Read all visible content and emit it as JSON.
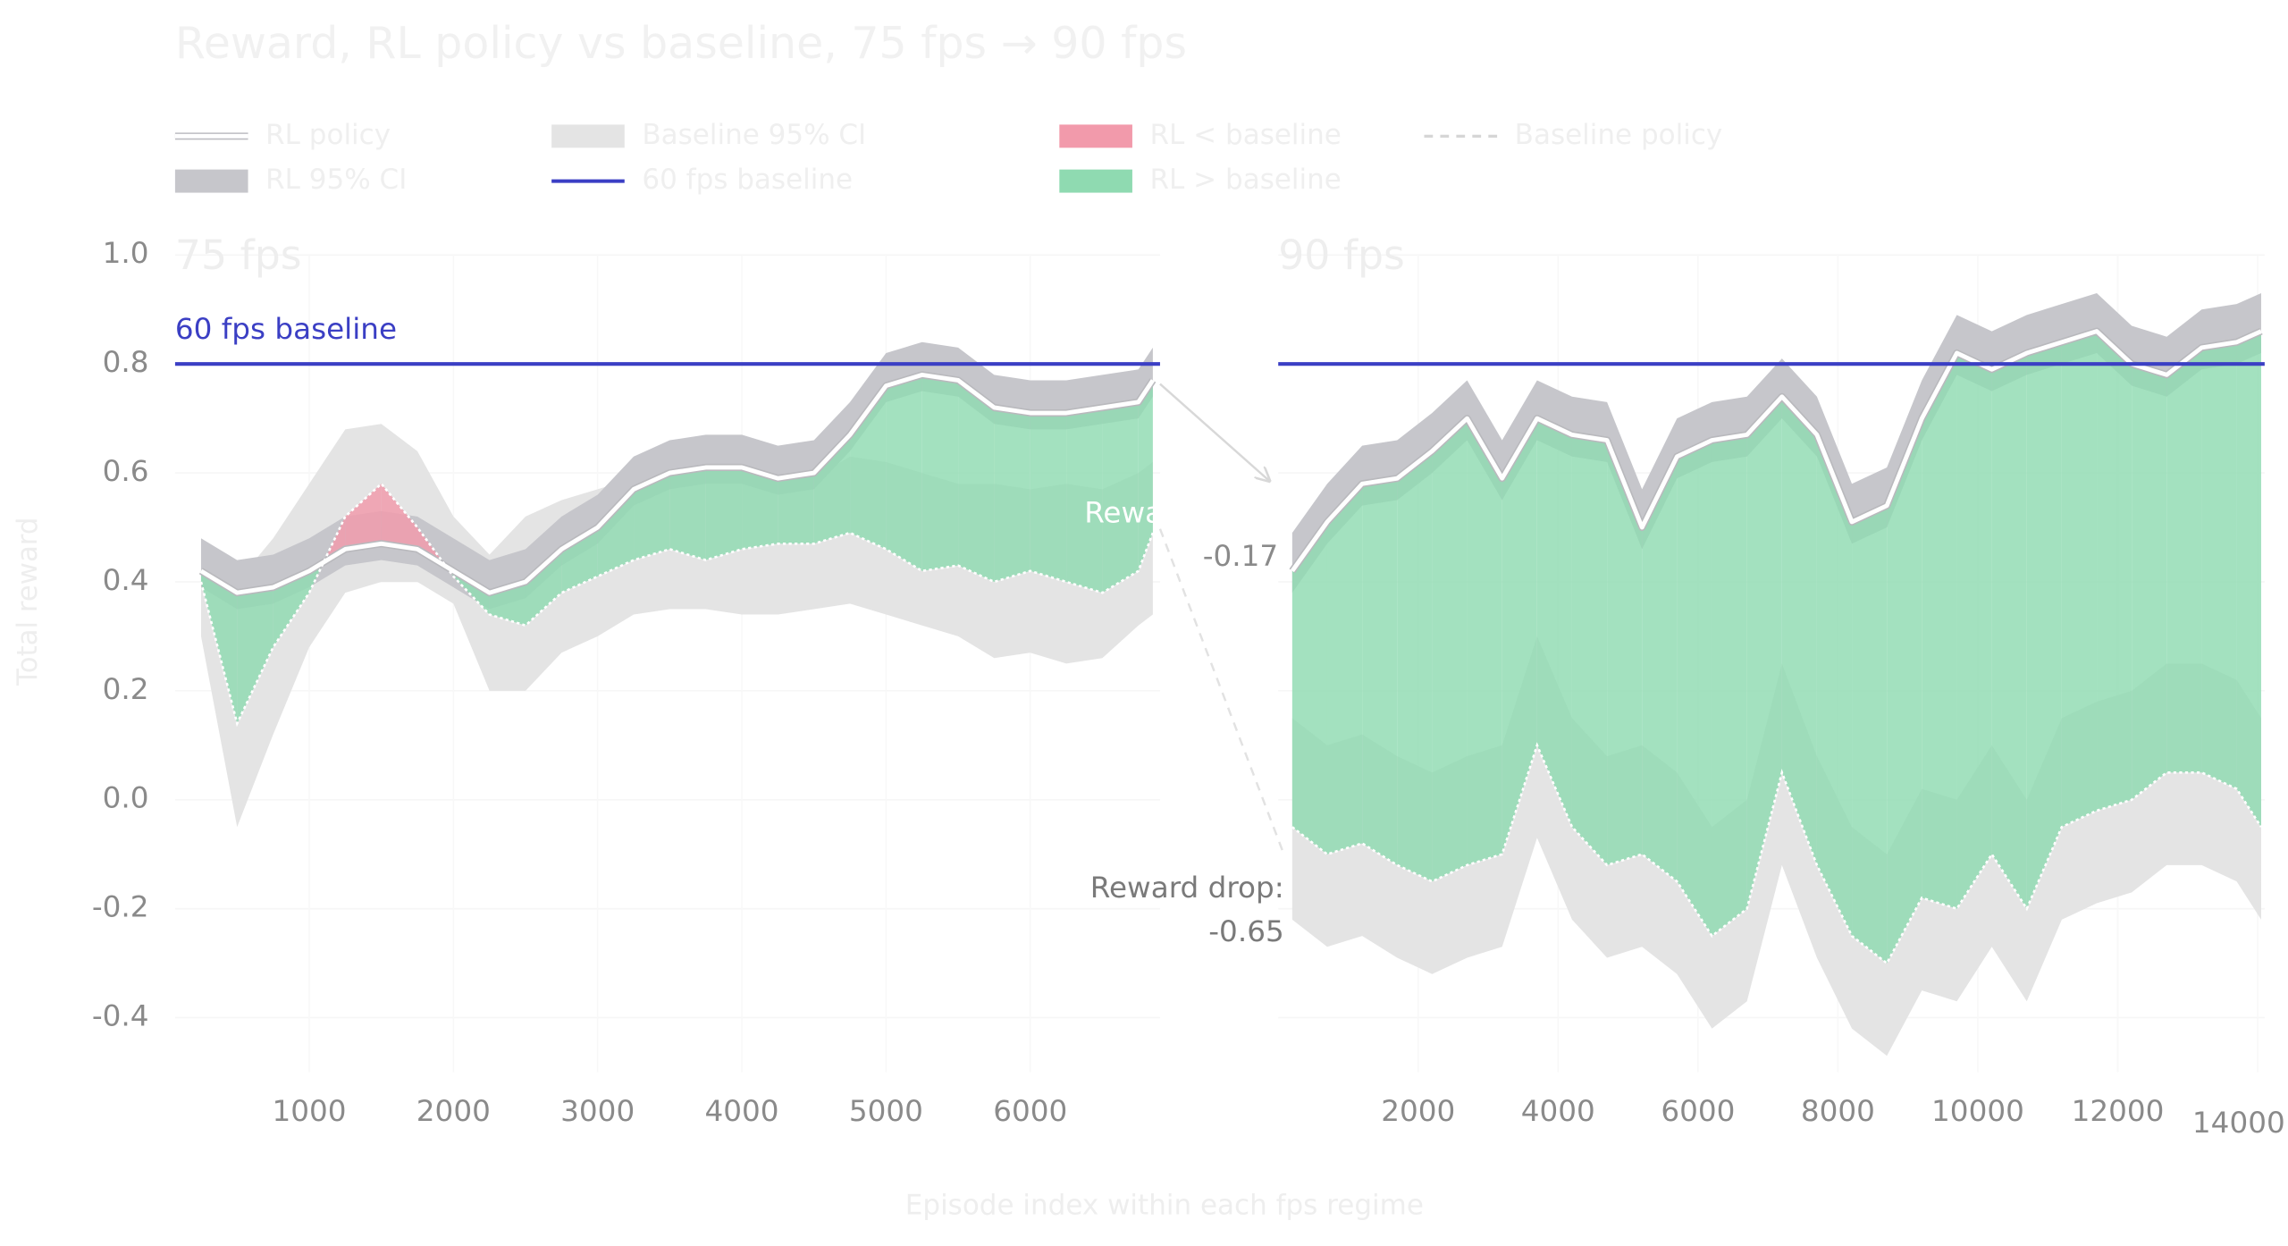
{
  "chart_data": {
    "type": "area",
    "title": "Reward, RL policy vs baseline, 75 fps → 90 fps",
    "x_label": "Episode index within each fps regime",
    "y_label": "Total reward",
    "ylim": [
      -0.5,
      1.0
    ],
    "yticks": [
      {
        "value": 1,
        "label": "1.0"
      },
      0.8,
      0.6,
      0.4,
      0.2,
      {
        "value": 0,
        "label": "0.0"
      },
      -0.2,
      -0.4
    ],
    "panels": [
      {
        "title": "75 fps",
        "x": [
          250,
          500,
          750,
          1000,
          1250,
          1500,
          1750,
          2000,
          2250,
          2500,
          2750,
          3000,
          3250,
          3500,
          3750,
          4000,
          4250,
          4500,
          4750,
          5000,
          5250,
          5500,
          5750,
          6000,
          6250,
          6500,
          6750,
          6850
        ],
        "xlim": [
          70,
          6900
        ],
        "xticks": [
          1000,
          2000,
          3000,
          4000,
          5000,
          6000
        ]
      },
      {
        "title": "90 fps",
        "x": [
          200,
          700,
          1200,
          1700,
          2200,
          2700,
          3200,
          3700,
          4200,
          4700,
          5200,
          5700,
          6200,
          6700,
          7200,
          7700,
          8200,
          8700,
          9200,
          9700,
          10200,
          10700,
          11200,
          11700,
          12200,
          12700,
          13200,
          13700,
          14050
        ],
        "xlim": [
          0,
          14100
        ],
        "xticks": [
          2000,
          4000,
          6000,
          8000,
          10000,
          12000,
          14000
        ]
      }
    ],
    "series": [
      {
        "name": "Baseline 95% CI",
        "kind": "band",
        "color": "#e4e4e4",
        "upper": [
          [
            0.45,
            0.4,
            0.48,
            0.58,
            0.68,
            0.69,
            0.64,
            0.52,
            0.45,
            0.52,
            0.55,
            0.57,
            0.59,
            0.6,
            0.61,
            0.6,
            0.58,
            0.59,
            0.63,
            0.62,
            0.6,
            0.58,
            0.58,
            0.57,
            0.58,
            0.57,
            0.6,
            0.62
          ],
          [
            0.15,
            0.1,
            0.12,
            0.08,
            0.05,
            0.08,
            0.1,
            0.3,
            0.15,
            0.08,
            0.1,
            0.05,
            -0.05,
            0,
            0.25,
            0.08,
            -0.05,
            -0.1,
            0.02,
            0,
            0.1,
            0,
            0.15,
            0.18,
            0.2,
            0.25,
            0.25,
            0.22,
            0.15
          ]
        ],
        "lower": [
          [
            0.3,
            -0.05,
            0.12,
            0.28,
            0.38,
            0.4,
            0.4,
            0.36,
            0.2,
            0.2,
            0.27,
            0.3,
            0.34,
            0.35,
            0.35,
            0.34,
            0.34,
            0.35,
            0.36,
            0.34,
            0.32,
            0.3,
            0.26,
            0.27,
            0.25,
            0.26,
            0.32,
            0.34
          ],
          [
            -0.22,
            -0.27,
            -0.25,
            -0.29,
            -0.32,
            -0.29,
            -0.27,
            -0.07,
            -0.22,
            -0.29,
            -0.27,
            -0.32,
            -0.42,
            -0.37,
            -0.12,
            -0.29,
            -0.42,
            -0.47,
            -0.35,
            -0.37,
            -0.27,
            -0.37,
            -0.22,
            -0.19,
            -0.17,
            -0.12,
            -0.12,
            -0.15,
            -0.22
          ]
        ]
      },
      {
        "name": "RL 95% CI",
        "kind": "band",
        "color": "#c6c6cb",
        "upper": [
          [
            0.48,
            0.44,
            0.45,
            0.48,
            0.52,
            0.53,
            0.52,
            0.48,
            0.44,
            0.46,
            0.52,
            0.56,
            0.63,
            0.66,
            0.67,
            0.67,
            0.65,
            0.66,
            0.73,
            0.82,
            0.84,
            0.83,
            0.78,
            0.77,
            0.77,
            0.78,
            0.79,
            0.83
          ],
          [
            0.49,
            0.58,
            0.65,
            0.66,
            0.71,
            0.77,
            0.66,
            0.77,
            0.74,
            0.73,
            0.57,
            0.7,
            0.73,
            0.74,
            0.81,
            0.74,
            0.58,
            0.61,
            0.77,
            0.89,
            0.86,
            0.89,
            0.91,
            0.93,
            0.87,
            0.85,
            0.9,
            0.91,
            0.93
          ]
        ],
        "lower": [
          [
            0.39,
            0.35,
            0.36,
            0.39,
            0.43,
            0.44,
            0.43,
            0.39,
            0.35,
            0.37,
            0.43,
            0.47,
            0.54,
            0.57,
            0.58,
            0.58,
            0.56,
            0.57,
            0.64,
            0.73,
            0.75,
            0.74,
            0.69,
            0.68,
            0.68,
            0.69,
            0.7,
            0.74
          ],
          [
            0.38,
            0.47,
            0.54,
            0.55,
            0.6,
            0.66,
            0.55,
            0.66,
            0.63,
            0.62,
            0.46,
            0.59,
            0.62,
            0.63,
            0.7,
            0.63,
            0.47,
            0.5,
            0.66,
            0.78,
            0.75,
            0.78,
            0.8,
            0.82,
            0.76,
            0.74,
            0.79,
            0.8,
            0.82
          ]
        ]
      },
      {
        "name": "RL policy",
        "kind": "line",
        "color": "#ffffff",
        "values": [
          [
            0.42,
            0.38,
            0.39,
            0.42,
            0.46,
            0.47,
            0.46,
            0.42,
            0.38,
            0.4,
            0.46,
            0.5,
            0.57,
            0.6,
            0.61,
            0.61,
            0.59,
            0.6,
            0.67,
            0.76,
            0.78,
            0.77,
            0.72,
            0.71,
            0.71,
            0.72,
            0.73,
            0.77
          ],
          [
            0.42,
            0.51,
            0.58,
            0.59,
            0.64,
            0.7,
            0.59,
            0.7,
            0.67,
            0.66,
            0.5,
            0.63,
            0.66,
            0.67,
            0.74,
            0.67,
            0.51,
            0.54,
            0.7,
            0.82,
            0.79,
            0.82,
            0.84,
            0.86,
            0.8,
            0.78,
            0.83,
            0.84,
            0.86
          ]
        ]
      },
      {
        "name": "Baseline policy",
        "kind": "dotted",
        "color": "#ffffff",
        "values": [
          [
            0.4,
            0.14,
            0.28,
            0.38,
            0.52,
            0.58,
            0.5,
            0.41,
            0.34,
            0.32,
            0.38,
            0.41,
            0.44,
            0.46,
            0.44,
            0.46,
            0.47,
            0.47,
            0.49,
            0.46,
            0.42,
            0.43,
            0.4,
            0.42,
            0.4,
            0.38,
            0.42,
            0.49
          ],
          [
            -0.05,
            -0.1,
            -0.08,
            -0.12,
            -0.15,
            -0.12,
            -0.1,
            0.1,
            -0.05,
            -0.12,
            -0.1,
            -0.15,
            -0.25,
            -0.2,
            0.05,
            -0.12,
            -0.25,
            -0.3,
            -0.18,
            -0.2,
            -0.1,
            -0.2,
            -0.05,
            -0.02,
            0,
            0.05,
            0.05,
            0.02,
            -0.05
          ]
        ]
      }
    ],
    "fills": [
      {
        "name": "RL < baseline",
        "color": "#f29aab"
      },
      {
        "name": "RL > baseline",
        "color": "#8fdab1"
      }
    ],
    "reference_line": {
      "label": "60 fps baseline",
      "value": 0.8,
      "color": "#3b3fc4"
    },
    "annotations": [
      {
        "label": "Reward drop:",
        "value": -0.17
      },
      {
        "label": "Reward drop:",
        "value": -0.65
      }
    ]
  }
}
